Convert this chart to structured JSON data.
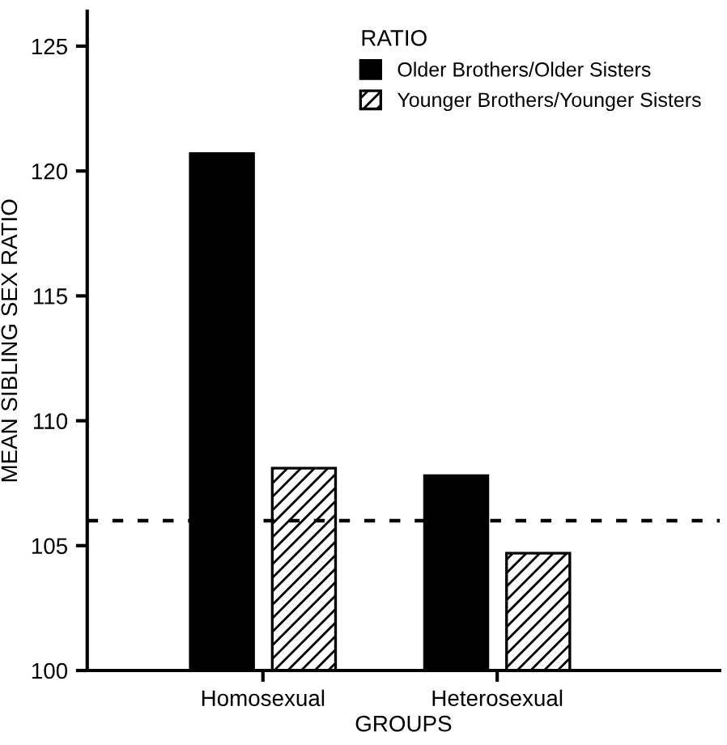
{
  "chart_data": {
    "type": "bar",
    "xlabel": "GROUPS",
    "ylabel": "MEAN SIBLING SEX RATIO",
    "legend_title": "RATIO",
    "categories": [
      "Homosexual",
      "Heterosexual"
    ],
    "series": [
      {
        "name": "Older Brothers/Older Sisters",
        "color": "#000000",
        "values": [
          120.7,
          107.8
        ]
      },
      {
        "name": "Younger Brothers/Younger Sisters",
        "color": "#000000",
        "values": [
          108.1,
          104.7
        ]
      }
    ],
    "ylim": [
      100,
      126.4
    ],
    "yticks": [
      100,
      105,
      110,
      115,
      120,
      125
    ],
    "ref_lines": [
      {
        "axis": "y",
        "value": 106,
        "color": "#000000",
        "line_style": "dashed"
      }
    ],
    "grid": false,
    "legend": "top right"
  }
}
